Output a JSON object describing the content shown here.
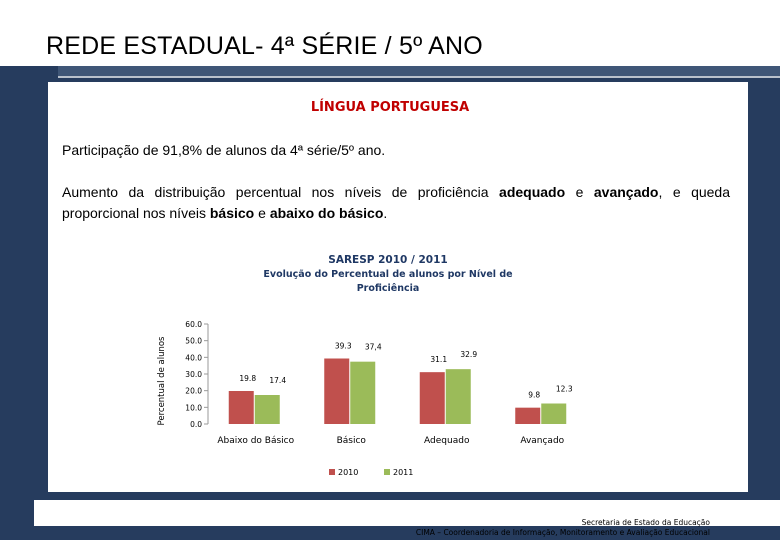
{
  "slide": {
    "title": "REDE ESTADUAL-  4ª SÉRIE / 5º ANO",
    "subject": "LÍNGUA PORTUGUESA",
    "participation": "Participação de 91,8% de alunos da 4ª série/5º ano.",
    "finding_parts": [
      "Aumento da distribuição percentual nos níveis de proficiência ",
      "adequado",
      " e ",
      "avançado",
      ", e queda proporcional nos níveis ",
      "básico",
      " e ",
      "abaixo do básico",
      "."
    ],
    "footer_line1": "Secretaria de Estado da Educação",
    "footer_line2": "CIMA – Coordenadoria de Informação, Monitoramento e Avaliação Educacional"
  },
  "colors": {
    "background_band": "#263c5e",
    "series_2010": "#c0504d",
    "series_2011": "#9bbb59",
    "subject_title": "#c00000"
  },
  "chart_data": {
    "type": "bar",
    "title_lines": [
      "SARESP 2010 / 2011",
      "Evolução do Percentual de alunos por  Nível de",
      "Proficiência"
    ],
    "ylabel": "Percentual de alunos",
    "xlabel": "",
    "ylim": [
      0,
      60
    ],
    "yticks": [
      "60.0",
      "50.0",
      "40.0",
      "30.0",
      "20.0",
      "10.0",
      "0.0"
    ],
    "categories": [
      "Abaixo do Básico",
      "Básico",
      "Adequado",
      "Avançado"
    ],
    "series": [
      {
        "name": "2010",
        "values": [
          19.8,
          39.3,
          31.1,
          9.8
        ],
        "labels": [
          "19.8",
          "39.3",
          "31.1",
          "9.8"
        ]
      },
      {
        "name": "2011",
        "values": [
          17.4,
          37.4,
          32.9,
          12.3
        ],
        "labels": [
          "17.4",
          "37,4",
          "32.9",
          "12.3"
        ]
      }
    ],
    "legend_position": "bottom",
    "grid": false
  }
}
